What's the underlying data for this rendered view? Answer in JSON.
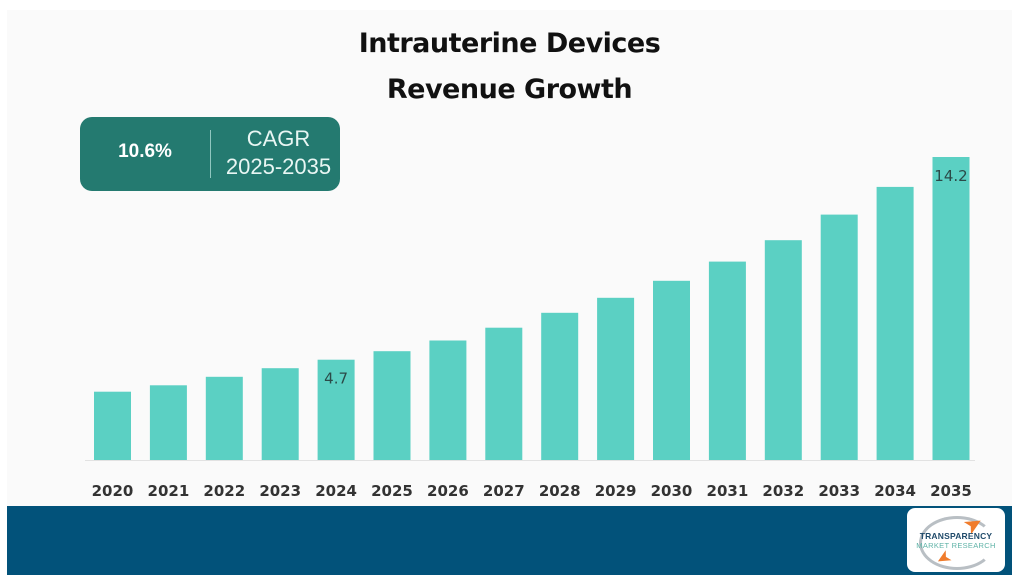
{
  "chart_data": {
    "type": "bar",
    "title": "Intrauterine Devices Revenue Growth",
    "title_lines": [
      "Intrauterine Devices",
      "Revenue Growth"
    ],
    "xlabel": "",
    "ylabel": "",
    "categories": [
      "2020",
      "2021",
      "2022",
      "2023",
      "2024",
      "2025",
      "2026",
      "2027",
      "2028",
      "2029",
      "2030",
      "2031",
      "2032",
      "2033",
      "2034",
      "2035"
    ],
    "values": [
      3.2,
      3.5,
      3.9,
      4.3,
      4.7,
      5.1,
      5.6,
      6.2,
      6.9,
      7.6,
      8.4,
      9.3,
      10.3,
      11.5,
      12.8,
      14.2
    ],
    "data_labels": {
      "2024": "4.7",
      "2035": "14.2"
    },
    "ylim": [
      0,
      14.2
    ],
    "grid": false,
    "legend": "none",
    "bar_color": "#5bd0c3"
  },
  "cagr_badge": {
    "value": "10.6%",
    "label": "CAGR",
    "period": "2025-2035",
    "color": "#247a70"
  },
  "footer": {
    "color": "#02527a",
    "logo": {
      "line1": "TRANSPARENCY",
      "line2": "MARKET RESEARCH"
    }
  }
}
